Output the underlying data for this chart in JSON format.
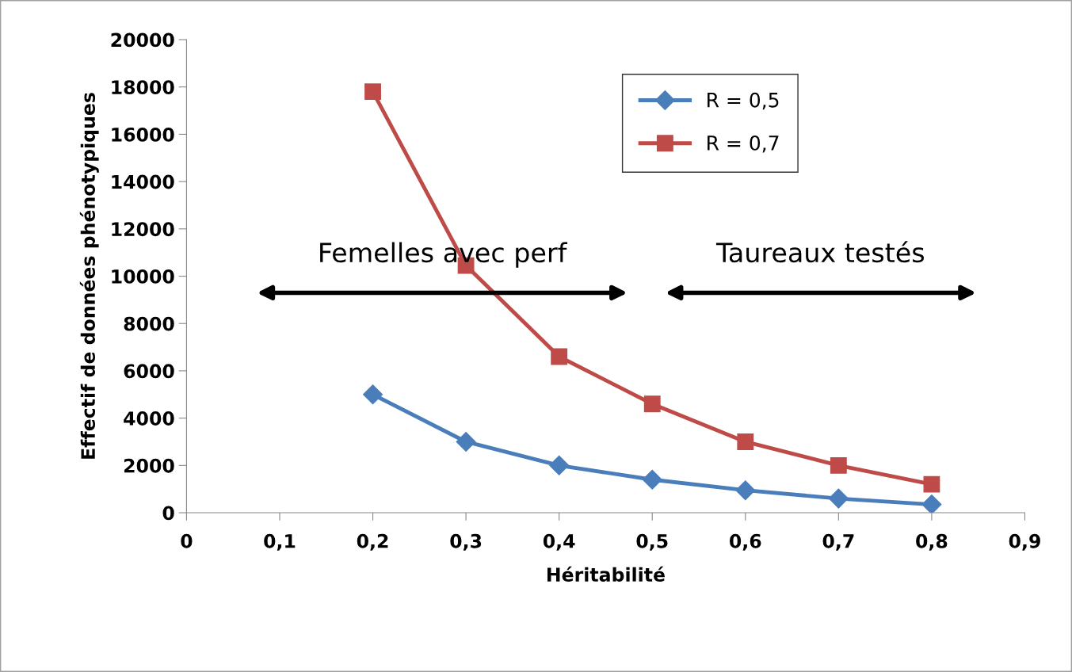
{
  "chart_data": {
    "type": "line",
    "xlabel": "Héritabilité",
    "ylabel": "Effectif de données phénotypiques",
    "x": [
      0.2,
      0.3,
      0.4,
      0.5,
      0.6,
      0.7,
      0.8
    ],
    "series": [
      {
        "name": "R = 0,5",
        "color": "#4a7ebb",
        "marker": "diamond",
        "values": [
          5000,
          3000,
          2000,
          1400,
          950,
          600,
          350
        ]
      },
      {
        "name": "R = 0,7",
        "color": "#be4b48",
        "marker": "square",
        "values": [
          17800,
          10450,
          6600,
          4600,
          3000,
          2000,
          1200
        ]
      }
    ],
    "xlim": [
      0,
      0.9
    ],
    "xticks": [
      {
        "value": 0,
        "label": "0"
      },
      {
        "value": 0.1,
        "label": "0,1"
      },
      {
        "value": 0.2,
        "label": "0,2"
      },
      {
        "value": 0.3,
        "label": "0,3"
      },
      {
        "value": 0.4,
        "label": "0,4"
      },
      {
        "value": 0.5,
        "label": "0,5"
      },
      {
        "value": 0.6,
        "label": "0,6"
      },
      {
        "value": 0.7,
        "label": "0,7"
      },
      {
        "value": 0.8,
        "label": "0,8"
      },
      {
        "value": 0.9,
        "label": "0,9"
      }
    ],
    "ylim": [
      0,
      20000
    ],
    "yticks": [
      0,
      2000,
      4000,
      6000,
      8000,
      10000,
      12000,
      14000,
      16000,
      18000,
      20000
    ],
    "annotations": [
      "Femelles avec perf",
      "Taureaux testés"
    ],
    "legend": "top right",
    "grid": false,
    "line_style": "solid"
  }
}
